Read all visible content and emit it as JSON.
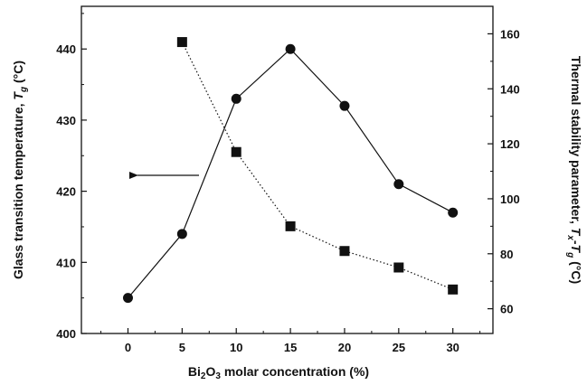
{
  "chart_data": {
    "type": "line",
    "x": [
      0,
      5,
      10,
      15,
      20,
      25,
      30
    ],
    "xlim": [
      -4.3,
      33.7
    ],
    "x_ticks": [
      "0",
      "5",
      "10",
      "15",
      "20",
      "25",
      "30"
    ],
    "series": [
      {
        "axis": "left",
        "marker": "circle",
        "line_style": "solid",
        "color": "#111111",
        "x": [
          0,
          5,
          10,
          15,
          20,
          25,
          30
        ],
        "values": [
          405,
          414,
          433,
          440,
          432,
          421,
          417
        ]
      },
      {
        "axis": "right",
        "marker": "square",
        "line_style": "dotted",
        "color": "#111111",
        "x": [
          5,
          10,
          15,
          20,
          25,
          30
        ],
        "values": [
          157,
          117,
          90,
          81,
          75,
          67
        ]
      }
    ],
    "y_left": {
      "lim": [
        400,
        446
      ],
      "ticks": [
        "400",
        "410",
        "420",
        "430",
        "440"
      ],
      "label": "Glass transition temperature, ",
      "label_symbol": "T",
      "label_sub": "g",
      "label_unit": " (°C)"
    },
    "y_right": {
      "lim": [
        51,
        170
      ],
      "ticks": [
        "60",
        "80",
        "100",
        "120",
        "140",
        "160"
      ],
      "label": "Thermal stability parameter, ",
      "label_symbol1": "T",
      "label_sub1": "x",
      "label_dash": "-",
      "label_symbol2": "T",
      "label_sub2": "g",
      "label_unit": " (°C)"
    },
    "xlabel": {
      "pre": "Bi",
      "sub1": "2",
      "mid": "O",
      "sub2": "3",
      "post": " molar concentration (%)"
    },
    "annotation": {
      "type": "arrow",
      "direction": "left",
      "points_to_axis": "left"
    },
    "grid": false,
    "legend": "none"
  }
}
